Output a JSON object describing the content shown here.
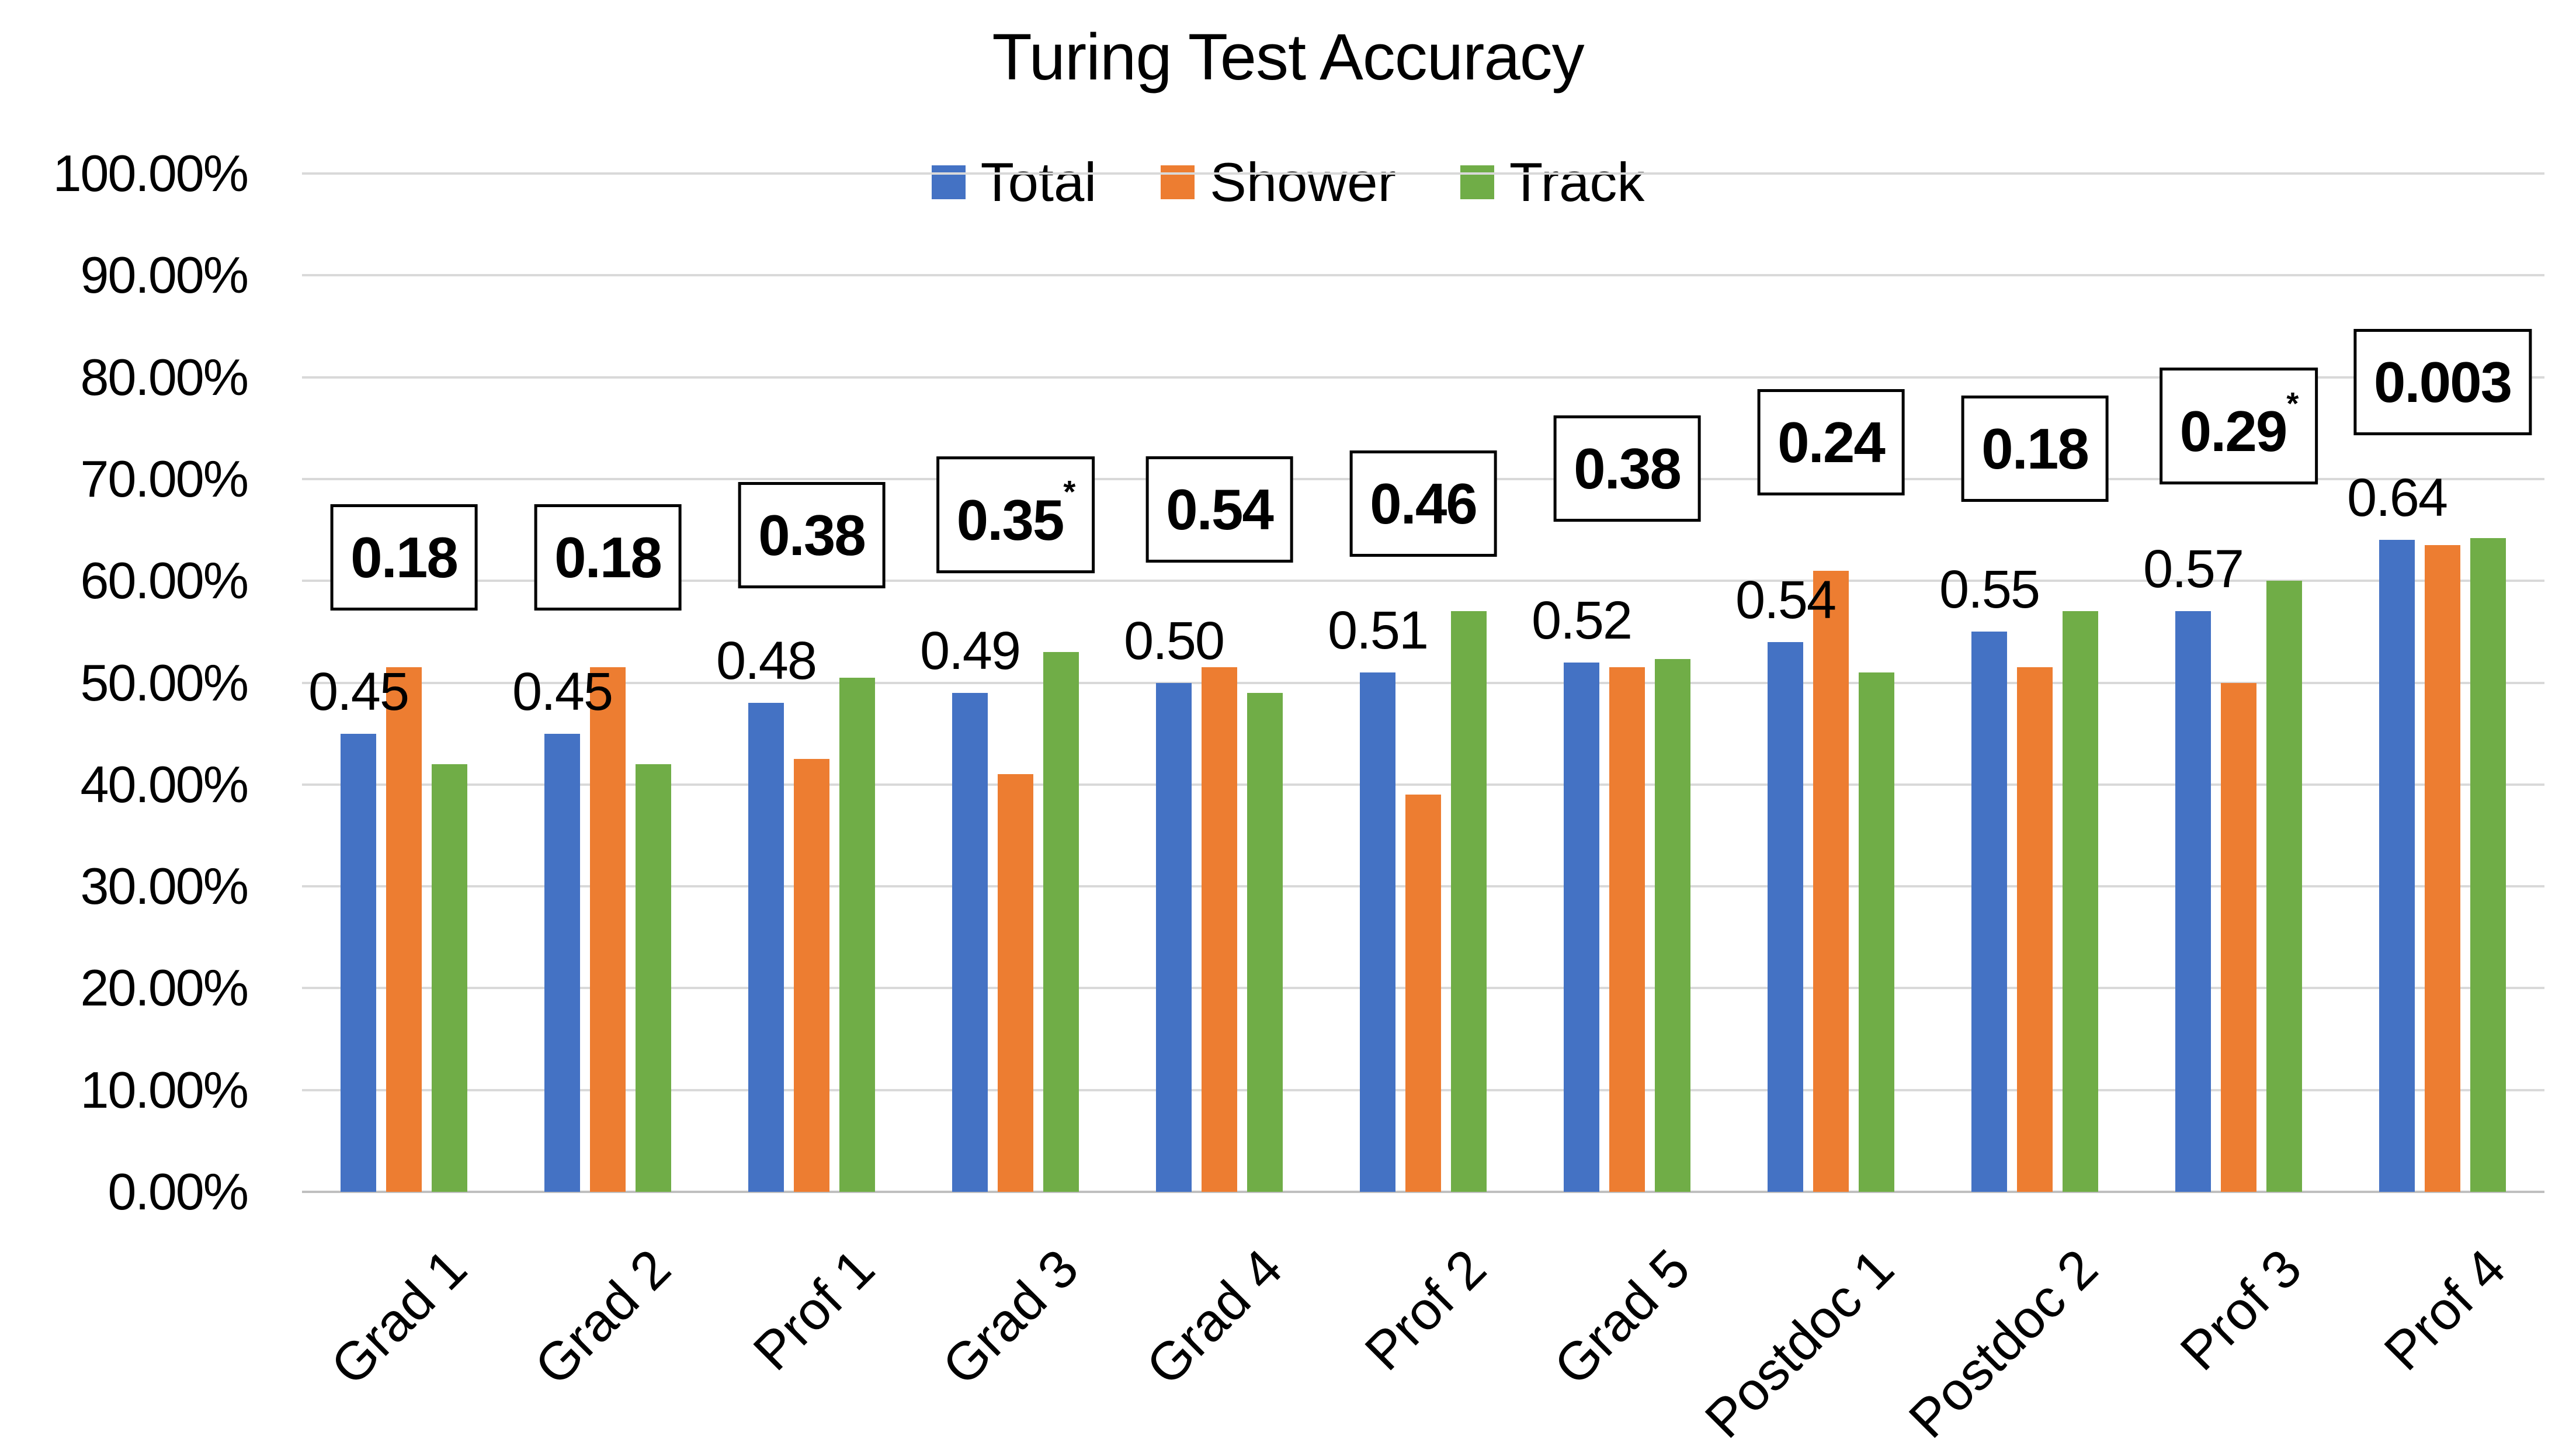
{
  "chart_data": {
    "type": "bar",
    "title": "Turing Test Accuracy",
    "categories": [
      "Grad 1",
      "Grad 2",
      "Prof 1",
      "Grad 3",
      "Grad 4",
      "Prof 2",
      "Grad 5",
      "Postdoc 1",
      "Postdoc 2",
      "Prof 3",
      "Prof 4"
    ],
    "series": [
      {
        "name": "Total",
        "color": "#4472C4",
        "values": [
          0.45,
          0.45,
          0.48,
          0.49,
          0.5,
          0.51,
          0.52,
          0.54,
          0.55,
          0.57,
          0.64
        ]
      },
      {
        "name": "Shower",
        "color": "#ED7D31",
        "values": [
          0.515,
          0.515,
          0.425,
          0.41,
          0.515,
          0.39,
          0.515,
          0.61,
          0.515,
          0.5,
          0.635
        ]
      },
      {
        "name": "Track",
        "color": "#70AD47",
        "values": [
          0.42,
          0.42,
          0.505,
          0.53,
          0.49,
          0.57,
          0.523,
          0.51,
          0.57,
          0.6,
          0.642
        ]
      }
    ],
    "data_labels": [
      "0.45",
      "0.45",
      "0.48",
      "0.49",
      "0.50",
      "0.51",
      "0.52",
      "0.54",
      "0.55",
      "0.57",
      "0.64"
    ],
    "data_label_series": "Total",
    "annotations": [
      {
        "text": "0.18",
        "sup": "",
        "center_pct": 62.3
      },
      {
        "text": "0.18",
        "sup": "",
        "center_pct": 62.3
      },
      {
        "text": "0.38",
        "sup": "",
        "center_pct": 64.5
      },
      {
        "text": "0.35",
        "sup": "*",
        "center_pct": 66.5
      },
      {
        "text": "0.54",
        "sup": "",
        "center_pct": 67.0
      },
      {
        "text": "0.46",
        "sup": "",
        "center_pct": 67.6
      },
      {
        "text": "0.38",
        "sup": "",
        "center_pct": 71.0
      },
      {
        "text": "0.24",
        "sup": "",
        "center_pct": 73.6
      },
      {
        "text": "0.18",
        "sup": "",
        "center_pct": 73.0
      },
      {
        "text": "0.29",
        "sup": "*",
        "center_pct": 75.2
      },
      {
        "text": "0.003",
        "sup": "",
        "center_pct": 79.5
      }
    ],
    "y_ticks": [
      "0.00%",
      "10.00%",
      "20.00%",
      "30.00%",
      "40.00%",
      "50.00%",
      "60.00%",
      "70.00%",
      "80.00%",
      "90.00%",
      "100.00%"
    ],
    "ylim": [
      0,
      1
    ],
    "grid": true,
    "legend_position": "top-center",
    "axis_colors": {
      "gridline": "#D9D9D9",
      "baseline": "#BFBFBF",
      "text": "#000000"
    }
  }
}
